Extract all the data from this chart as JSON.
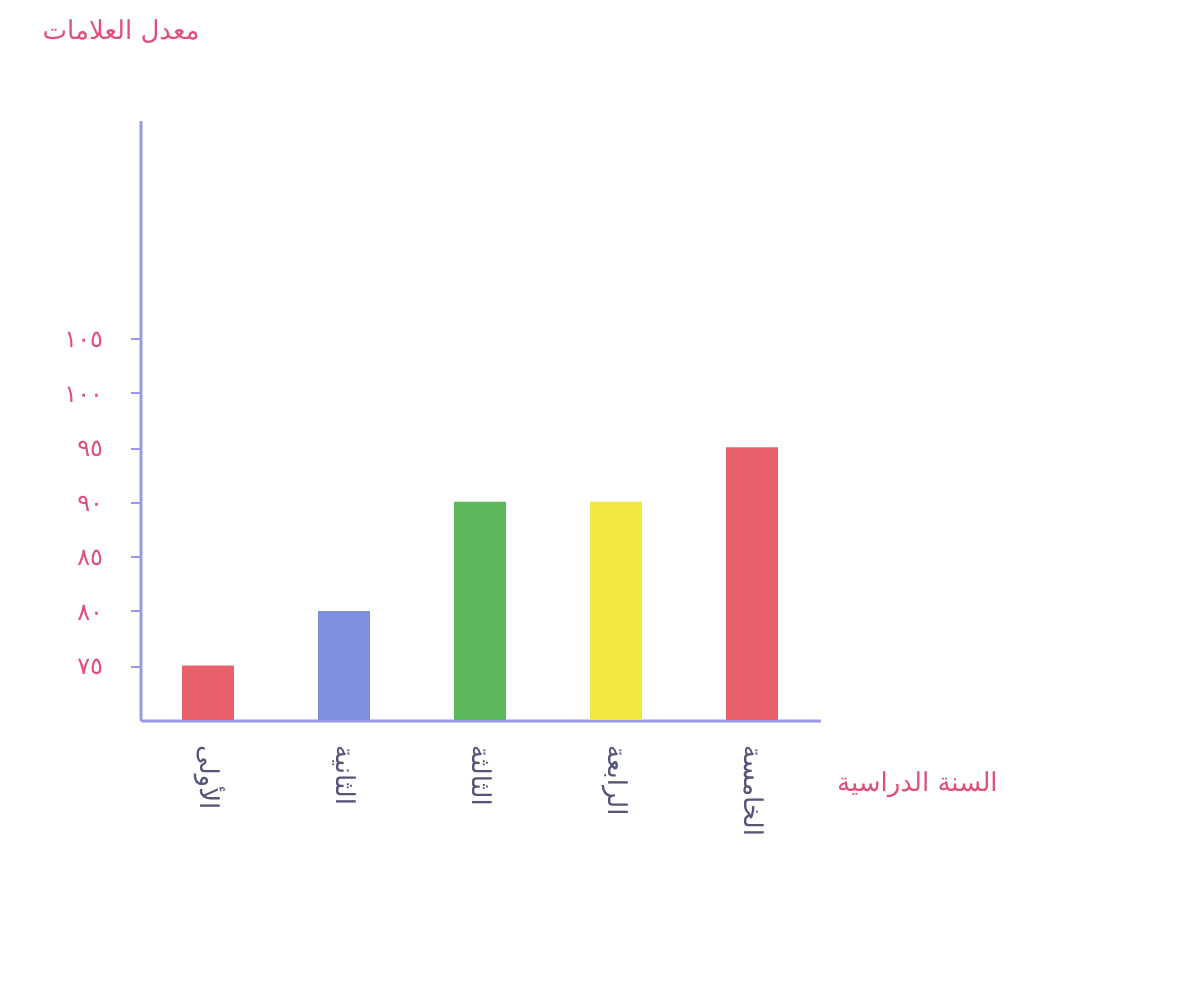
{
  "chart_data": {
    "type": "bar",
    "xlabel": "السنة الدراسية",
    "ylabel": "معدل العلامات",
    "categories": [
      "الأولى",
      "الثانية",
      "الثالثة",
      "الرابعة",
      "الخامسة"
    ],
    "values": [
      75,
      80,
      90,
      90,
      95
    ],
    "colors": [
      "#e8606b",
      "#8090e0",
      "#5cb85c",
      "#f2e640",
      "#e8606b"
    ],
    "ylim": [
      70,
      125
    ],
    "yticks": [
      {
        "value": 75,
        "label": "٧٥"
      },
      {
        "value": 80,
        "label": "٨٠"
      },
      {
        "value": 85,
        "label": "٨٥"
      },
      {
        "value": 90,
        "label": "٩٠"
      },
      {
        "value": 95,
        "label": "٩٥"
      },
      {
        "value": 100,
        "label": "١٠٠"
      },
      {
        "value": 105,
        "label": "١٠٥"
      }
    ],
    "grid": false
  }
}
